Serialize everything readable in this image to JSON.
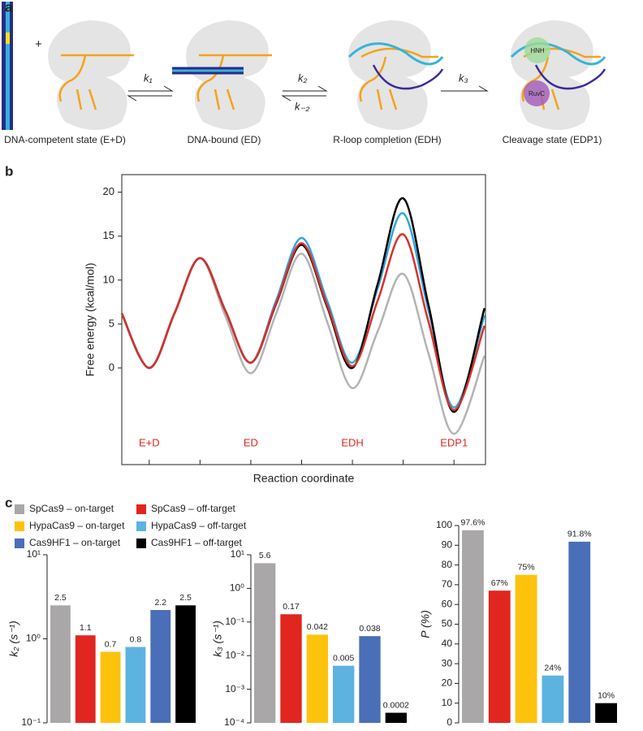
{
  "panel_a": {
    "label": "a",
    "plus": "+",
    "rates": [
      "k₁",
      "k₂",
      "k₋₂",
      "k₃"
    ],
    "states": [
      "DNA-competent state (E+D)",
      "DNA-bound (ED)",
      "R-loop completion (EDH)",
      "Cleavage state (EDP1)"
    ],
    "domains": [
      "HNH",
      "RuvC"
    ]
  },
  "panel_labels": [
    "b",
    "c"
  ],
  "legend": {
    "series": [
      {
        "name": "SpCas9 – on-target",
        "color": "#a9a7a8"
      },
      {
        "name": "SpCas9 – off-target",
        "color": "#e0261f"
      },
      {
        "name": "HypaCas9 – on-target",
        "color": "#fdc20c"
      },
      {
        "name": "HypaCas9 – off-target",
        "color": "#5db3e0"
      },
      {
        "name": "Cas9HF1 – on-target",
        "color": "#4a6fb8"
      },
      {
        "name": "Cas9HF1 – off-target",
        "color": "#000000"
      }
    ]
  },
  "chart_data": [
    {
      "type": "line",
      "xlabel": "Reaction coordinate",
      "ylabel": "Free energy (kcal/mol)",
      "x": [
        -0.54,
        0,
        0.5,
        1,
        1.5,
        2,
        2.5,
        3,
        3.5,
        4,
        4.5,
        5,
        5.5,
        6,
        6.6
      ],
      "xlim": [
        -0.54,
        6.62
      ],
      "xticks": [
        0,
        1,
        2,
        3,
        4,
        5,
        6
      ],
      "ylim": [
        -11,
        22
      ],
      "yticks": [
        0,
        5,
        10,
        15,
        20
      ],
      "annotations": [
        "E+D",
        "ED",
        "EDH",
        "EDP1"
      ],
      "annotation_color": "#e0261f",
      "series": [
        {
          "color": "#b3b3b3",
          "values": [
            6.2,
            0,
            6.25,
            12.5,
            5.9,
            -0.6,
            6.2,
            13,
            5.3,
            -2.3,
            4.2,
            10.7,
            1.6,
            -7.5,
            1.4
          ]
        },
        {
          "color": "#2ea6d9",
          "values": [
            6.2,
            0,
            6.25,
            12.5,
            6.5,
            0.6,
            7.7,
            14.8,
            7.7,
            0.6,
            9.1,
            17.6,
            6.5,
            -4.5,
            6
          ]
        },
        {
          "color": "#000000",
          "values": [
            6.2,
            0,
            6.25,
            12.5,
            6.5,
            0.6,
            7.3,
            14,
            7,
            0,
            9.6,
            19.3,
            7.1,
            -5,
            6.8
          ]
        },
        {
          "color": "#d9302a",
          "values": [
            6.2,
            0,
            6.25,
            12.5,
            6.5,
            0.6,
            7.4,
            14.2,
            7.2,
            0.2,
            7.7,
            15.2,
            5.2,
            -4.8,
            4.8
          ]
        }
      ]
    },
    {
      "type": "bar",
      "ylabel": "k₂ (s⁻¹)",
      "log": true,
      "ylim": [
        0.1,
        10
      ],
      "yticks": [
        {
          "value": 0.1,
          "label": "10⁻¹"
        },
        {
          "value": 1,
          "label": "10⁰"
        },
        {
          "value": 10,
          "label": "10¹"
        }
      ],
      "values": [
        2.5,
        1.1,
        0.7,
        0.8,
        2.2,
        2.5
      ]
    },
    {
      "type": "bar",
      "ylabel": "k₃ (s⁻¹)",
      "log": true,
      "ylim": [
        0.0001,
        10
      ],
      "yticks": [
        {
          "value": 0.0001,
          "label": "10⁻⁴"
        },
        {
          "value": 0.001,
          "label": "10⁻³"
        },
        {
          "value": 0.01,
          "label": "10⁻²"
        },
        {
          "value": 0.1,
          "label": "10⁻¹"
        },
        {
          "value": 1,
          "label": "10⁰"
        },
        {
          "value": 10,
          "label": "10¹"
        }
      ],
      "values": [
        5.6,
        0.17,
        0.042,
        0.005,
        0.038,
        0.0002
      ]
    },
    {
      "type": "bar",
      "ylabel": "P (%)",
      "log": false,
      "ylim": [
        0,
        100
      ],
      "yticks": [
        0,
        10,
        20,
        30,
        40,
        50,
        60,
        70,
        80,
        90,
        100
      ],
      "values": [
        97.6,
        67,
        75,
        24,
        91.8,
        10
      ],
      "value_labels": [
        "97.6%",
        "67%",
        "75%",
        "24%",
        "91.8%",
        "10%"
      ]
    }
  ]
}
